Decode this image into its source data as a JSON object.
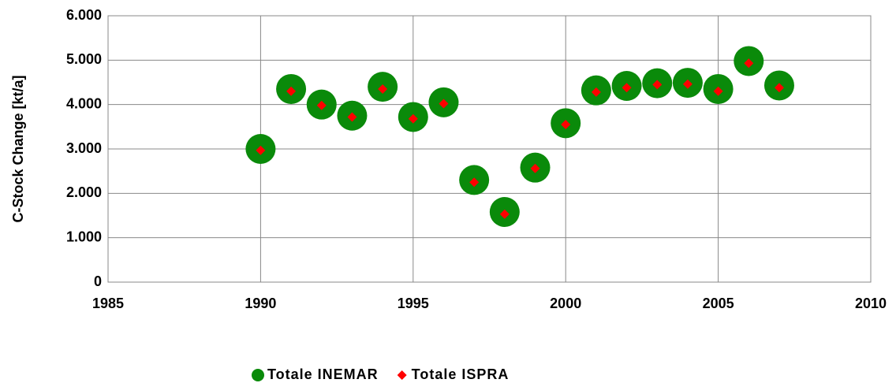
{
  "chart_data": {
    "type": "scatter",
    "y_label": "C-Stock Change [kt/a]",
    "x": [
      1990,
      1991,
      1992,
      1993,
      1994,
      1995,
      1996,
      1997,
      1998,
      1999,
      2000,
      2001,
      2002,
      2003,
      2004,
      2005,
      2006,
      2007
    ],
    "series": [
      {
        "name": "Totale INEMAR",
        "color": "#0a8a0a",
        "marker": "circle",
        "values": [
          3000,
          4350,
          4000,
          3750,
          4400,
          3720,
          4050,
          2300,
          1580,
          2580,
          3580,
          4320,
          4420,
          4480,
          4490,
          4350,
          4980,
          4430
        ]
      },
      {
        "name": "Totale ISPRA",
        "color": "#ff0000",
        "marker": "diamond",
        "values": [
          2970,
          4300,
          3980,
          3720,
          4350,
          3680,
          4020,
          2250,
          1530,
          2560,
          3550,
          4280,
          4380,
          4450,
          4460,
          4300,
          4930,
          4380
        ]
      }
    ],
    "xlim": [
      1985,
      2010
    ],
    "xticks": [
      1985,
      1990,
      1995,
      2000,
      2005,
      2010
    ],
    "ylim": [
      0,
      6000
    ],
    "yticks": [
      0,
      {
        "value": 1000,
        "label": "1.000"
      },
      {
        "value": 2000,
        "label": "2.000"
      },
      {
        "value": 3000,
        "label": "3.000"
      },
      {
        "value": 4000,
        "label": "4.000"
      },
      {
        "value": 5000,
        "label": "5.000"
      },
      {
        "value": 6000,
        "label": "6.000"
      }
    ],
    "grid": true,
    "legend": "bottom"
  }
}
